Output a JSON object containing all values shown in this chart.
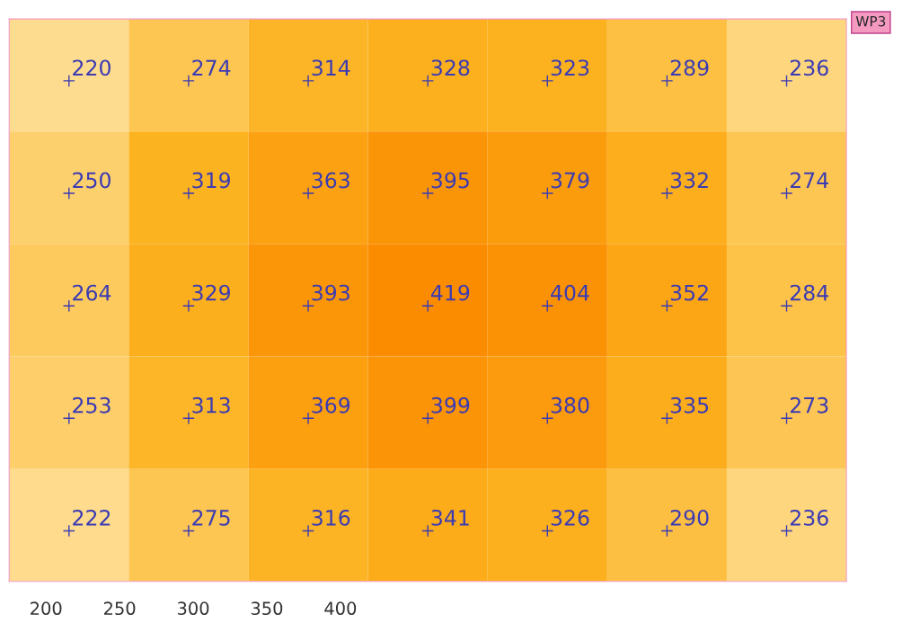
{
  "chart_data": {
    "type": "heatmap",
    "title": "WP3",
    "categories": [
      null,
      null,
      null,
      null,
      null,
      null,
      null
    ],
    "y_categories": [
      null,
      null,
      null,
      null,
      null
    ],
    "cells": [
      [
        220,
        274,
        314,
        328,
        323,
        289,
        236
      ],
      [
        250,
        319,
        363,
        395,
        379,
        332,
        274
      ],
      [
        264,
        329,
        393,
        419,
        404,
        352,
        284
      ],
      [
        253,
        313,
        369,
        399,
        380,
        335,
        273
      ],
      [
        222,
        275,
        316,
        341,
        326,
        290,
        236
      ]
    ],
    "data_labels": true,
    "annotations": [
      "200",
      "250",
      "300",
      "350",
      "400"
    ]
  }
}
